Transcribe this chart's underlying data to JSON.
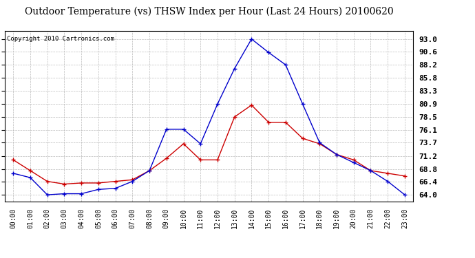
{
  "title": "Outdoor Temperature (vs) THSW Index per Hour (Last 24 Hours) 20100620",
  "copyright_text": "Copyright 2010 Cartronics.com",
  "hours": [
    "00:00",
    "01:00",
    "02:00",
    "03:00",
    "04:00",
    "05:00",
    "06:00",
    "07:00",
    "08:00",
    "09:00",
    "10:00",
    "11:00",
    "12:00",
    "13:00",
    "14:00",
    "15:00",
    "16:00",
    "17:00",
    "18:00",
    "19:00",
    "20:00",
    "21:00",
    "22:00",
    "23:00"
  ],
  "temp_red": [
    70.5,
    68.5,
    66.5,
    66.0,
    66.2,
    66.2,
    66.5,
    66.8,
    68.5,
    70.8,
    73.5,
    70.5,
    70.5,
    78.5,
    80.7,
    77.5,
    77.5,
    74.5,
    73.5,
    71.5,
    70.5,
    68.5,
    68.0,
    67.5
  ],
  "thsw_blue": [
    68.0,
    67.2,
    64.0,
    64.2,
    64.2,
    65.0,
    65.2,
    66.5,
    68.5,
    76.2,
    76.2,
    73.5,
    80.9,
    87.5,
    93.0,
    90.5,
    88.2,
    80.9,
    73.7,
    71.5,
    70.0,
    68.5,
    66.5,
    64.0
  ],
  "ylim_min": 62.8,
  "ylim_max": 94.5,
  "yticks": [
    64.0,
    66.4,
    68.8,
    71.2,
    73.7,
    76.1,
    78.5,
    80.9,
    83.3,
    85.8,
    88.2,
    90.6,
    93.0
  ],
  "bg_color": "#ffffff",
  "plot_bg_color": "#ffffff",
  "grid_color": "#aaaaaa",
  "line_color_red": "#cc0000",
  "line_color_blue": "#0000cc",
  "title_fontsize": 10,
  "tick_fontsize": 7,
  "copyright_fontsize": 6.5,
  "ylabel_fontsize": 8
}
